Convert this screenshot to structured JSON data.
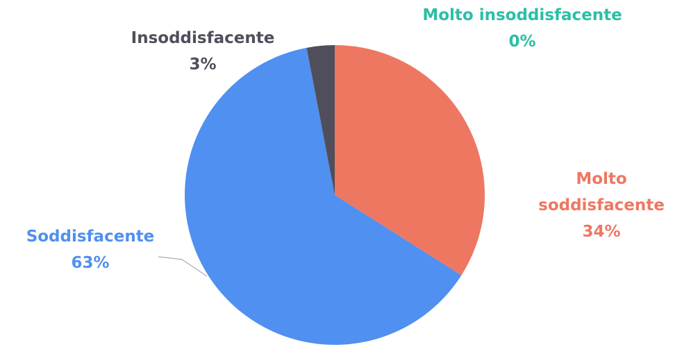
{
  "chart_data": {
    "type": "pie",
    "categories": [
      "Molto soddisfacente",
      "Soddisfacente",
      "Insoddisfacente",
      "Molto insoddisfacente"
    ],
    "values": [
      34,
      63,
      3,
      0
    ],
    "value_labels": [
      "34%",
      "63%",
      "3%",
      "0%"
    ],
    "colors": [
      "#ee7762",
      "#4f90f0",
      "#4f4e5a",
      "#2bbfa4"
    ]
  }
}
